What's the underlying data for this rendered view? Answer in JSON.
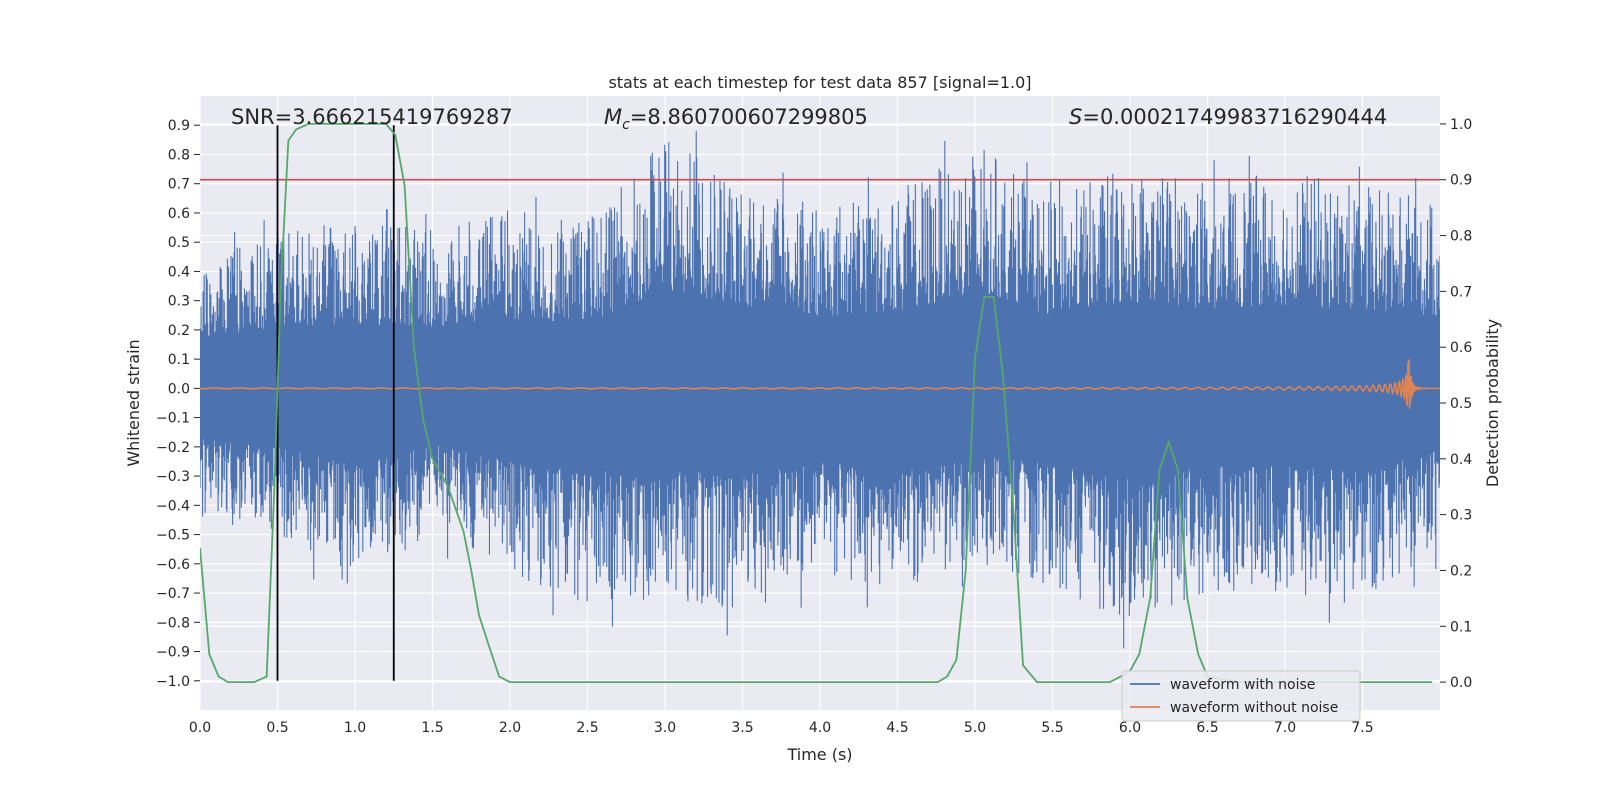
{
  "chart_data": {
    "type": "line",
    "title": "stats at each timestep for test data 857 [signal=1.0]",
    "xlabel": "Time (s)",
    "ylabel": "Whitened strain",
    "ylabel_right": "Detection probability",
    "xlim": [
      0.0,
      8.0
    ],
    "ylim": [
      -1.1,
      1.0
    ],
    "ylim_right": [
      -0.05,
      1.05
    ],
    "x_ticks": [
      "0.0",
      "0.5",
      "1.0",
      "1.5",
      "2.0",
      "2.5",
      "3.0",
      "3.5",
      "4.0",
      "4.5",
      "5.0",
      "5.5",
      "6.0",
      "6.5",
      "7.0",
      "7.5"
    ],
    "y_ticks": [
      "0.9",
      "0.8",
      "0.7",
      "0.6",
      "0.5",
      "0.4",
      "0.3",
      "0.2",
      "0.1",
      "0.0",
      "−0.1",
      "−0.2",
      "−0.3",
      "−0.4",
      "−0.5",
      "−0.6",
      "−0.7",
      "−0.8",
      "−0.9",
      "−1.0"
    ],
    "y_ticks_right": [
      "1.0",
      "0.9",
      "0.8",
      "0.7",
      "0.6",
      "0.5",
      "0.4",
      "0.3",
      "0.2",
      "0.1",
      "0.0"
    ],
    "grid": true,
    "annotations": {
      "snr": "SNR=3.666215419769287",
      "mc_symbol": "M",
      "mc_sub": "c",
      "mc_value": "=8.860700607299805",
      "s_symbol": "S",
      "s_value": "=0.00021749983716290444"
    },
    "legend": {
      "placement": "lower-right",
      "entries": [
        "waveform with noise",
        "waveform without noise"
      ]
    },
    "threshold_right": 0.9,
    "vertical_markers_x": [
      0.5,
      1.25
    ],
    "noise_envelope": {
      "x": [
        0.0,
        0.5,
        1.0,
        1.5,
        2.0,
        2.5,
        3.0,
        3.5,
        4.0,
        4.5,
        5.0,
        5.5,
        6.0,
        6.5,
        7.0,
        7.5,
        8.0
      ],
      "upper": [
        0.45,
        0.55,
        0.58,
        0.55,
        0.62,
        0.58,
        0.88,
        0.72,
        0.65,
        0.68,
        0.85,
        0.65,
        0.78,
        0.72,
        0.75,
        0.7,
        0.65
      ],
      "lower": [
        -0.45,
        -0.5,
        -0.7,
        -0.5,
        -0.65,
        -0.75,
        -0.72,
        -0.78,
        -0.65,
        -0.7,
        -0.6,
        -0.68,
        -0.82,
        -0.7,
        -0.7,
        -0.75,
        -0.55
      ]
    },
    "clean_waveform": {
      "x_start": 0.0,
      "x_merger": 7.8,
      "x_end": 8.0,
      "peak_amplitude": 0.1
    },
    "series": [
      {
        "name": "detection probability",
        "axis": "right",
        "x": [
          0.0,
          0.06,
          0.12,
          0.18,
          0.25,
          0.35,
          0.43,
          0.48,
          0.52,
          0.57,
          0.62,
          0.7,
          0.8,
          0.9,
          1.0,
          1.1,
          1.2,
          1.26,
          1.32,
          1.38,
          1.44,
          1.5,
          1.6,
          1.7,
          1.75,
          1.8,
          1.87,
          1.93,
          2.0,
          3.0,
          4.0,
          4.6,
          4.76,
          4.82,
          4.88,
          4.94,
          5.0,
          5.06,
          5.12,
          5.18,
          5.25,
          5.31,
          5.4,
          5.6,
          5.8,
          5.87,
          5.94,
          6.0,
          6.06,
          6.13,
          6.19,
          6.25,
          6.31,
          6.37,
          6.44,
          6.5,
          6.7,
          7.0,
          7.5,
          7.95
        ],
        "y": [
          0.24,
          0.05,
          0.01,
          0.0,
          0.0,
          0.0,
          0.01,
          0.35,
          0.7,
          0.97,
          0.99,
          1.0,
          1.0,
          1.0,
          1.0,
          1.0,
          1.0,
          0.98,
          0.89,
          0.6,
          0.47,
          0.4,
          0.35,
          0.27,
          0.2,
          0.12,
          0.06,
          0.01,
          0.0,
          0.0,
          0.0,
          0.0,
          0.0,
          0.01,
          0.04,
          0.2,
          0.58,
          0.69,
          0.69,
          0.55,
          0.3,
          0.03,
          0.0,
          0.0,
          0.0,
          0.0,
          0.01,
          0.02,
          0.05,
          0.15,
          0.38,
          0.43,
          0.38,
          0.15,
          0.05,
          0.01,
          0.0,
          0.0,
          0.0,
          0.0
        ]
      }
    ],
    "colors": {
      "noise": "#4c72b0",
      "clean": "#dd8452",
      "probability": "#55a868",
      "threshold": "#c44e52",
      "marker": "#000000",
      "plot_background": "#eaeaf2",
      "grid": "#ffffff"
    }
  }
}
